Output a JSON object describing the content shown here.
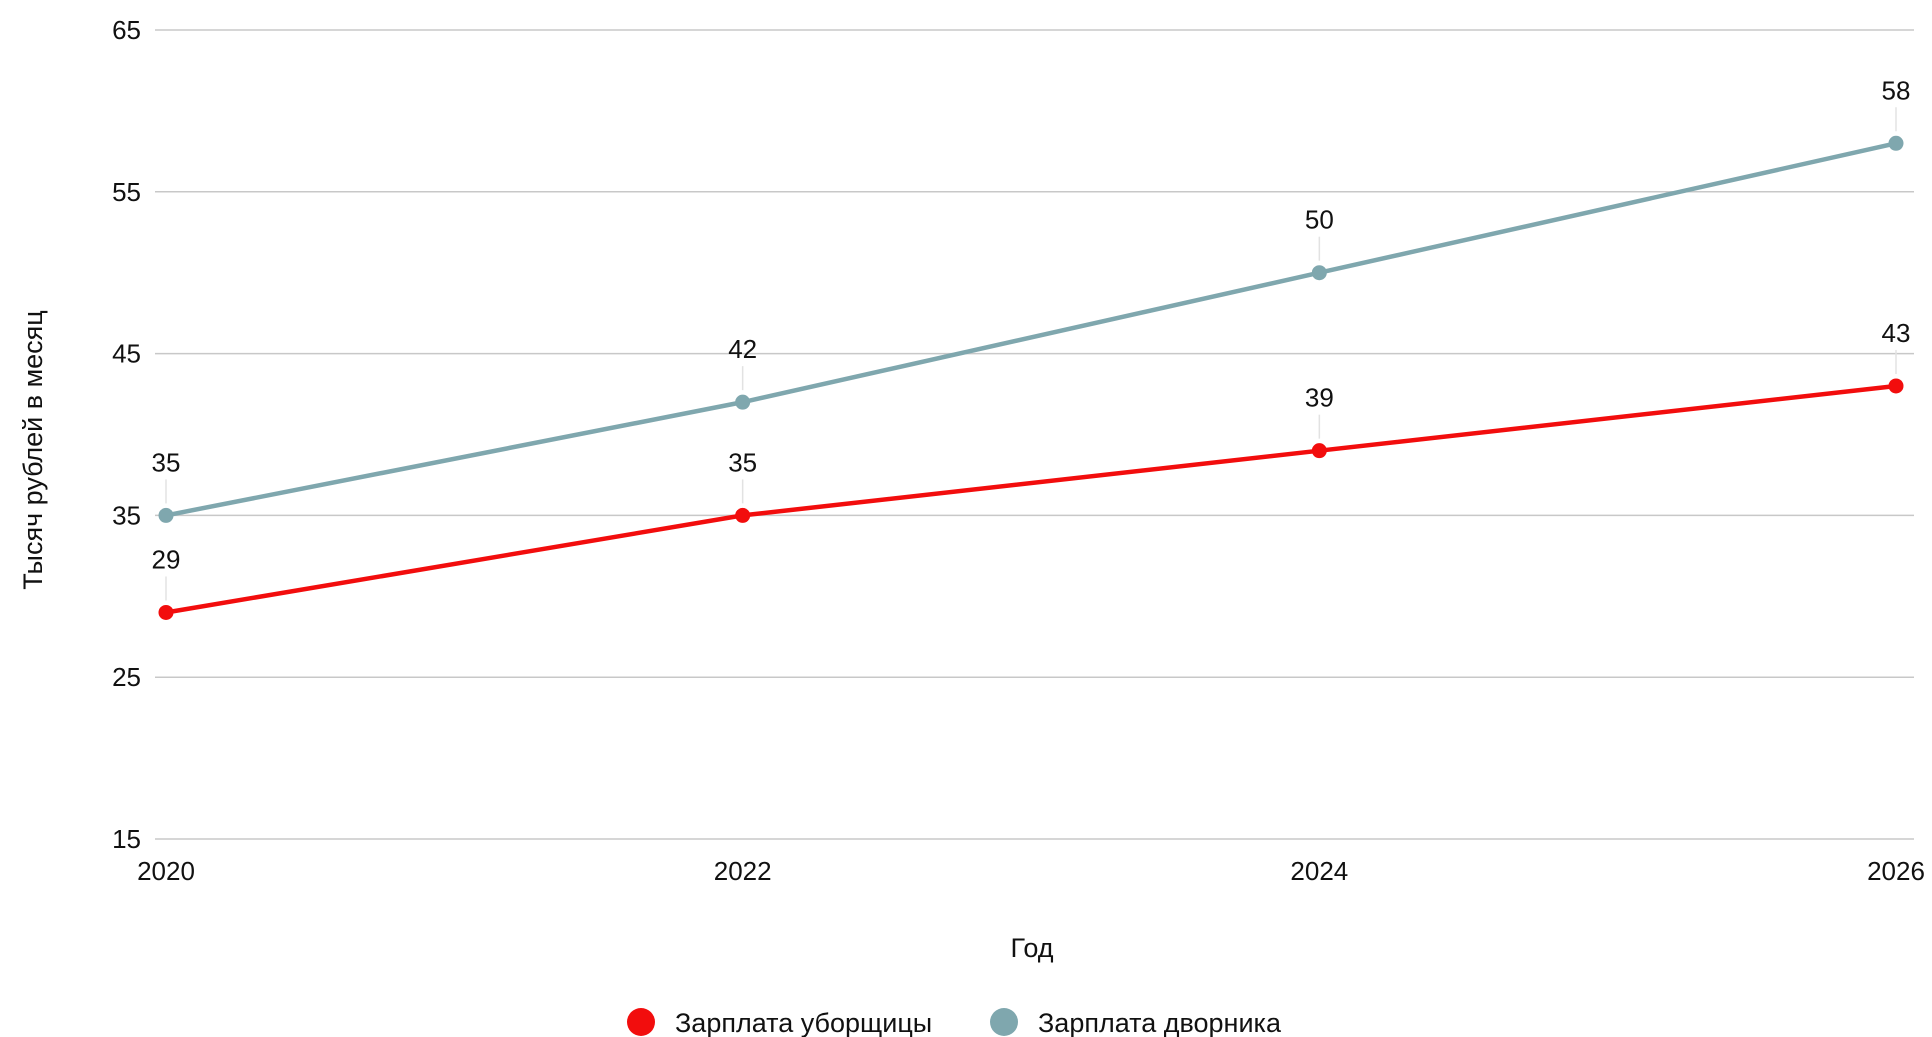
{
  "chart_data": {
    "type": "line",
    "x": [
      2020,
      2022,
      2024,
      2026
    ],
    "series": [
      {
        "name": "Зарплата уборщицы",
        "values": [
          29,
          35,
          39,
          43
        ],
        "color": "#f20d0d"
      },
      {
        "name": "Зарплата дворника",
        "values": [
          35,
          42,
          50,
          58
        ],
        "color": "#7fa7ae"
      }
    ],
    "xlabel": "Год",
    "ylabel": "Тысяч рублей в месяц",
    "ylim": [
      15,
      65
    ],
    "yticks": [
      15,
      25,
      35,
      45,
      55,
      65
    ],
    "xticks": [
      2020,
      2022,
      2024,
      2026
    ],
    "grid": true,
    "data_labels": true,
    "legend_position": "bottom"
  }
}
